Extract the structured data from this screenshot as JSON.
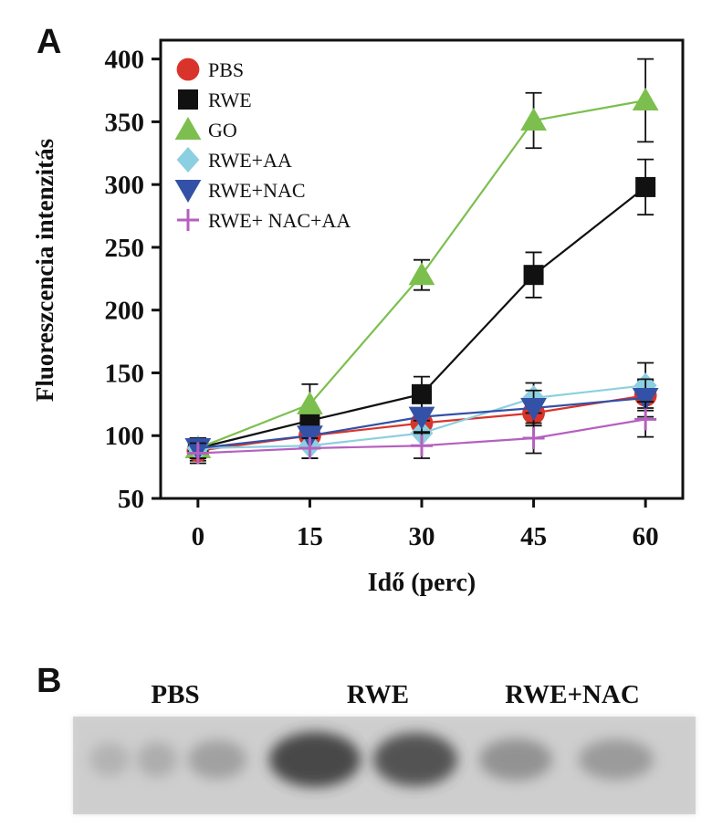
{
  "panel_a_label": "A",
  "panel_b_label": "B",
  "chart_data": {
    "type": "line",
    "title": "",
    "xlabel": "Idő (perc)",
    "ylabel": "Fluoreszcencia intenzitás",
    "x": [
      0,
      15,
      30,
      45,
      60
    ],
    "x_ticks": [
      "0",
      "15",
      "30",
      "45",
      "60"
    ],
    "xlim": [
      -5,
      65
    ],
    "y_ticks": [
      "50",
      "100",
      "150",
      "200",
      "250",
      "300",
      "350",
      "400"
    ],
    "ylim": [
      50,
      415
    ],
    "grid": false,
    "legend_position": "top-left",
    "series": [
      {
        "name": "PBS",
        "marker": "circle",
        "color": "#d9342b",
        "values": [
          88,
          100,
          110,
          118,
          132
        ],
        "errors": [
          8,
          8,
          10,
          10,
          12
        ]
      },
      {
        "name": "RWE",
        "marker": "square",
        "color": "#111111",
        "values": [
          90,
          112,
          133,
          228,
          298
        ],
        "errors": [
          8,
          10,
          14,
          18,
          22
        ]
      },
      {
        "name": "GO",
        "marker": "triangle-up",
        "color": "#7cbf4e",
        "values": [
          90,
          125,
          228,
          351,
          367
        ],
        "errors": [
          8,
          16,
          12,
          22,
          33
        ]
      },
      {
        "name": "RWE+AA",
        "marker": "diamond",
        "color": "#8ccfe0",
        "values": [
          90,
          92,
          102,
          130,
          140
        ],
        "errors": [
          8,
          10,
          10,
          12,
          18
        ]
      },
      {
        "name": "RWE+NAC",
        "marker": "triangle-down",
        "color": "#3351a6",
        "values": [
          90,
          100,
          115,
          122,
          130
        ],
        "errors": [
          8,
          10,
          12,
          14,
          15
        ]
      },
      {
        "name": "RWE+ NAC+AA",
        "marker": "plus",
        "color": "#b560bf",
        "values": [
          86,
          90,
          92,
          98,
          113
        ],
        "errors": [
          8,
          8,
          10,
          12,
          14
        ]
      }
    ]
  },
  "blot": {
    "lane_labels": [
      "PBS",
      "RWE",
      "RWE+NAC"
    ],
    "band_intensity": [
      0.25,
      0.3,
      0.4,
      0.9,
      0.85,
      0.5,
      0.45
    ]
  }
}
